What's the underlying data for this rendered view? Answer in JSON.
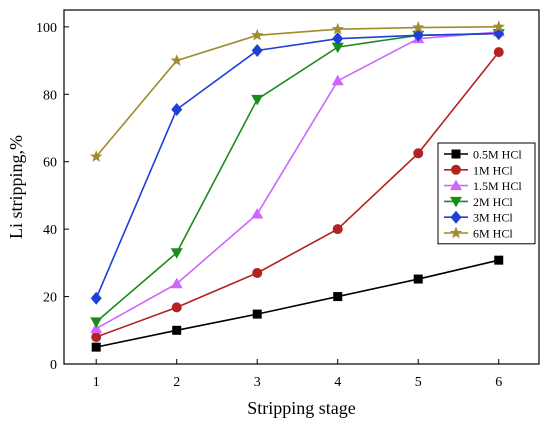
{
  "chart_data": {
    "type": "line",
    "xlabel": "Stripping stage",
    "ylabel": "Li stripping,%",
    "x": [
      1,
      2,
      3,
      4,
      5,
      6
    ],
    "xlim": [
      0.6,
      6.5
    ],
    "ylim": [
      0,
      105
    ],
    "xticks": [
      1,
      2,
      3,
      4,
      5,
      6
    ],
    "yticks": [
      0,
      20,
      40,
      60,
      80,
      100
    ],
    "grid": false,
    "legend_position": "right",
    "series": [
      {
        "name": "0.5M HCl",
        "color": "#000000",
        "marker": "square",
        "values": [
          5,
          10,
          14.8,
          20,
          25.2,
          30.8
        ]
      },
      {
        "name": "1M HCl",
        "color": "#b22222",
        "marker": "circle",
        "values": [
          8,
          16.8,
          27,
          40,
          62.5,
          92.5
        ]
      },
      {
        "name": "1.5M HCl",
        "color": "#cc66ff",
        "marker": "triangle-up",
        "values": [
          10.5,
          23.8,
          44.5,
          84,
          96.5,
          98.5
        ]
      },
      {
        "name": "2M HCl",
        "color": "#1a8c1a",
        "marker": "triangle-down",
        "values": [
          12.5,
          33,
          78.5,
          94,
          97.5,
          98
        ]
      },
      {
        "name": "3M HCl",
        "color": "#1f3fd6",
        "marker": "diamond",
        "values": [
          19.5,
          75.5,
          93,
          96.5,
          97.5,
          98
        ]
      },
      {
        "name": "6M HCl",
        "color": "#a08c2a",
        "marker": "star",
        "values": [
          61.5,
          90,
          97.5,
          99.3,
          99.8,
          100
        ]
      }
    ]
  }
}
